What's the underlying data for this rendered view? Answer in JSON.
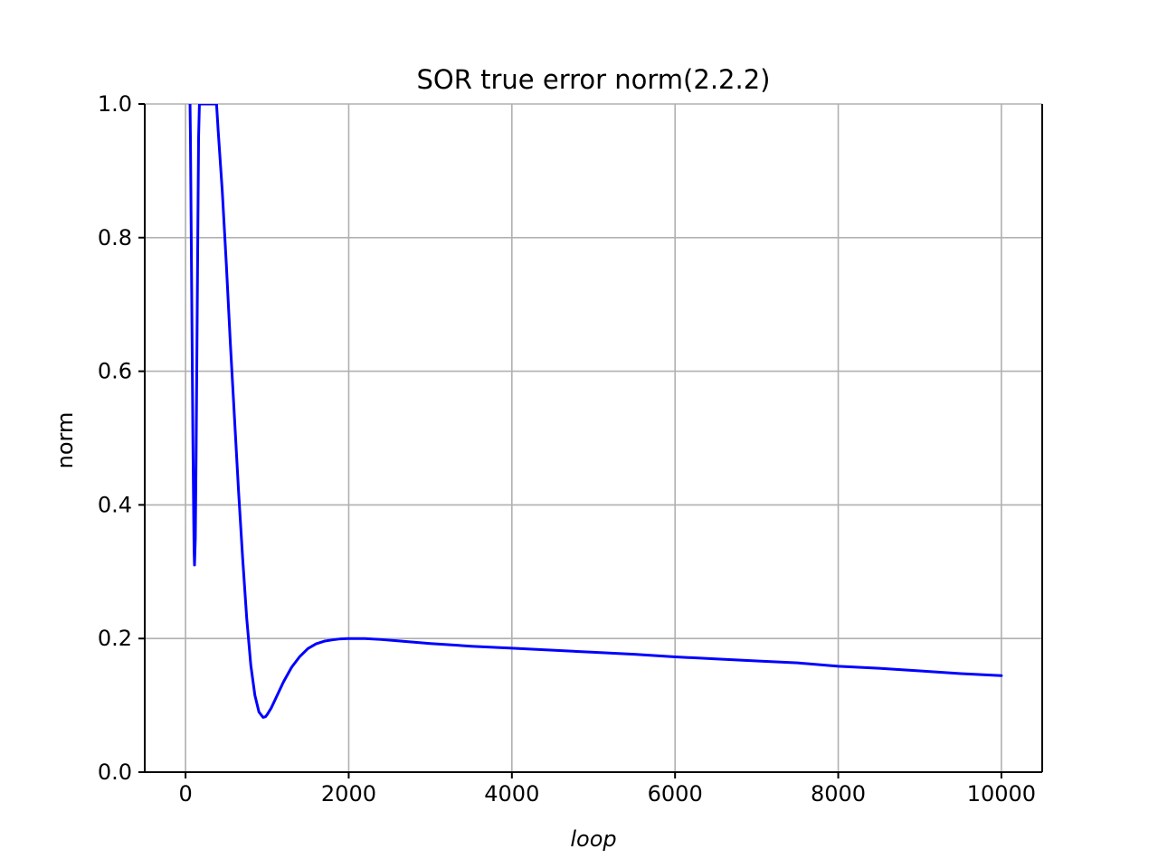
{
  "chart_data": {
    "type": "line",
    "title": "SOR true error norm(2.2.2)",
    "xlabel": "loop",
    "ylabel": "norm",
    "xlim": [
      -500,
      10500
    ],
    "ylim": [
      0.0,
      1.0
    ],
    "xticks": [
      0,
      2000,
      4000,
      6000,
      8000,
      10000
    ],
    "xtick_labels": [
      "0",
      "2000",
      "4000",
      "6000",
      "8000",
      "10000"
    ],
    "yticks": [
      0.0,
      0.2,
      0.4,
      0.6,
      0.8,
      1.0
    ],
    "ytick_labels": [
      "0.0",
      "0.2",
      "0.4",
      "0.6",
      "0.8",
      "1.0"
    ],
    "grid": true,
    "legend": null,
    "series": [
      {
        "color": "#0000ff",
        "x": [
          55,
          60,
          70,
          80,
          90,
          100,
          105,
          110,
          120,
          130,
          140,
          150,
          160,
          170,
          180,
          190,
          380,
          400,
          450,
          500,
          550,
          600,
          650,
          700,
          750,
          800,
          850,
          900,
          950,
          980,
          1000,
          1050,
          1100,
          1200,
          1300,
          1400,
          1500,
          1600,
          1700,
          1800,
          1900,
          2000,
          2200,
          2400,
          2600,
          2800,
          3000,
          3500,
          4000,
          4500,
          5000,
          5500,
          6000,
          6500,
          7000,
          7500,
          8000,
          8500,
          9000,
          9500,
          10000
        ],
        "y": [
          1.0,
          0.95,
          0.8,
          0.65,
          0.5,
          0.38,
          0.33,
          0.31,
          0.35,
          0.48,
          0.64,
          0.8,
          0.95,
          1.0,
          1.0,
          1.0,
          1.0,
          0.96,
          0.87,
          0.76,
          0.64,
          0.53,
          0.42,
          0.32,
          0.23,
          0.16,
          0.115,
          0.09,
          0.082,
          0.083,
          0.086,
          0.096,
          0.109,
          0.135,
          0.157,
          0.173,
          0.185,
          0.192,
          0.196,
          0.198,
          0.1995,
          0.2,
          0.2,
          0.1985,
          0.1965,
          0.1945,
          0.1925,
          0.1885,
          0.1855,
          0.1825,
          0.1795,
          0.1765,
          0.1725,
          0.1695,
          0.1665,
          0.1635,
          0.1585,
          0.1555,
          0.1515,
          0.1475,
          0.1445
        ]
      }
    ]
  }
}
